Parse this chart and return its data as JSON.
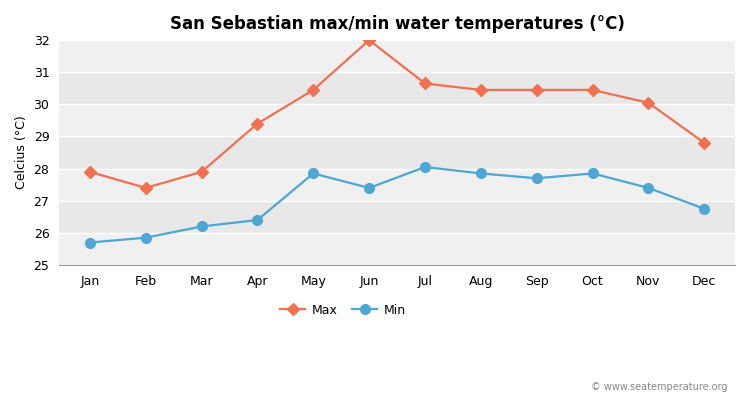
{
  "title": "San Sebastian max/min water temperatures (°C)",
  "ylabel": "Celcius (°C)",
  "months": [
    "Jan",
    "Feb",
    "Mar",
    "Apr",
    "May",
    "Jun",
    "Jul",
    "Aug",
    "Sep",
    "Oct",
    "Nov",
    "Dec"
  ],
  "max_temps": [
    27.9,
    27.4,
    27.9,
    29.4,
    30.45,
    32.0,
    30.65,
    30.45,
    30.45,
    30.45,
    30.05,
    28.8
  ],
  "min_temps": [
    25.7,
    25.85,
    26.2,
    26.4,
    27.85,
    27.4,
    28.05,
    27.85,
    27.7,
    27.85,
    27.4,
    26.75
  ],
  "max_color": "#f07050",
  "min_color": "#4da6d4",
  "figure_bg": "#ffffff",
  "plot_bg_light": "#f0f0f0",
  "plot_bg_dark": "#e4e4e4",
  "band_colors": [
    "#f0f0f0",
    "#e8e8e8"
  ],
  "ylim": [
    25,
    32
  ],
  "yticks": [
    25,
    26,
    27,
    28,
    29,
    30,
    31,
    32
  ],
  "legend_labels": [
    "Max",
    "Min"
  ],
  "watermark": "© www.seatemperature.org",
  "title_fontsize": 12,
  "axis_label_fontsize": 9,
  "tick_fontsize": 9,
  "legend_fontsize": 9,
  "linewidth": 1.6,
  "markersize_max": 6,
  "markersize_min": 7
}
